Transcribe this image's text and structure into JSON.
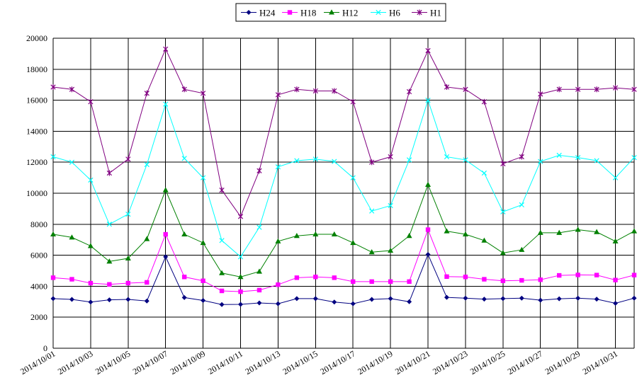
{
  "chart_data": {
    "type": "line",
    "title": "",
    "xlabel": "",
    "ylabel": "",
    "ylim": [
      0,
      20000
    ],
    "y_ticks": [
      "0",
      "2000",
      "4000",
      "6000",
      "8000",
      "10000",
      "12000",
      "14000",
      "16000",
      "18000",
      "20000"
    ],
    "grid": true,
    "legend_position": "top",
    "x": [
      "2014/10/01",
      "2014/10/02",
      "2014/10/03",
      "2014/10/04",
      "2014/10/05",
      "2014/10/06",
      "2014/10/07",
      "2014/10/08",
      "2014/10/09",
      "2014/10/10",
      "2014/10/11",
      "2014/10/12",
      "2014/10/13",
      "2014/10/14",
      "2014/10/15",
      "2014/10/16",
      "2014/10/17",
      "2014/10/18",
      "2014/10/19",
      "2014/10/20",
      "2014/10/21",
      "2014/10/22",
      "2014/10/23",
      "2014/10/24",
      "2014/10/25",
      "2014/10/26",
      "2014/10/27",
      "2014/10/28",
      "2014/10/29",
      "2014/10/30",
      "2014/10/31",
      "2014/11/01"
    ],
    "x_tick_labels": [
      "2014/10/01",
      "2014/10/03",
      "2014/10/05",
      "2014/10/07",
      "2014/10/09",
      "2014/10/11",
      "2014/10/13",
      "2014/10/15",
      "2014/10/17",
      "2014/10/19",
      "2014/10/21",
      "2014/10/23",
      "2014/10/25",
      "2014/10/27",
      "2014/10/29",
      "2014/10/31"
    ],
    "series": [
      {
        "name": "H24",
        "color": "#000080",
        "marker": "diamond",
        "values": [
          3200,
          3150,
          2980,
          3120,
          3150,
          3050,
          5900,
          3270,
          3080,
          2820,
          2830,
          2920,
          2870,
          3200,
          3200,
          2980,
          2870,
          3150,
          3200,
          3000,
          6050,
          3280,
          3230,
          3170,
          3200,
          3230,
          3100,
          3190,
          3230,
          3170,
          2900,
          3230
        ]
      },
      {
        "name": "H18",
        "color": "#ff00ff",
        "marker": "square",
        "values": [
          4550,
          4450,
          4200,
          4120,
          4200,
          4250,
          7350,
          4600,
          4350,
          3700,
          3650,
          3750,
          4100,
          4550,
          4600,
          4550,
          4300,
          4300,
          4300,
          4300,
          7650,
          4620,
          4600,
          4450,
          4350,
          4380,
          4420,
          4700,
          4730,
          4720,
          4400,
          4720
        ]
      },
      {
        "name": "H12",
        "color": "#008000",
        "marker": "triangle",
        "values": [
          7350,
          7150,
          6600,
          5600,
          5800,
          7050,
          10200,
          7350,
          6800,
          4850,
          4600,
          4950,
          6900,
          7250,
          7350,
          7350,
          6800,
          6200,
          6300,
          7250,
          10550,
          7550,
          7350,
          6950,
          6150,
          6350,
          7450,
          7450,
          7650,
          7500,
          6900,
          7550
        ]
      },
      {
        "name": "H6",
        "color": "#00ffff",
        "marker": "x",
        "values": [
          12350,
          12000,
          10850,
          8000,
          8650,
          11850,
          15750,
          12250,
          11000,
          6950,
          5900,
          7800,
          11700,
          12100,
          12200,
          12050,
          11000,
          8850,
          9200,
          12150,
          16000,
          12350,
          12150,
          11300,
          8800,
          9250,
          12050,
          12450,
          12300,
          12100,
          11000,
          12300
        ]
      },
      {
        "name": "H1",
        "color": "#800080",
        "marker": "star",
        "values": [
          16850,
          16700,
          15900,
          11300,
          12200,
          16450,
          19300,
          16700,
          16450,
          10200,
          8500,
          11450,
          16350,
          16700,
          16600,
          16600,
          15900,
          12000,
          12350,
          16550,
          19200,
          16850,
          16700,
          15900,
          11900,
          12350,
          16400,
          16700,
          16700,
          16700,
          16800,
          16700
        ]
      }
    ]
  }
}
